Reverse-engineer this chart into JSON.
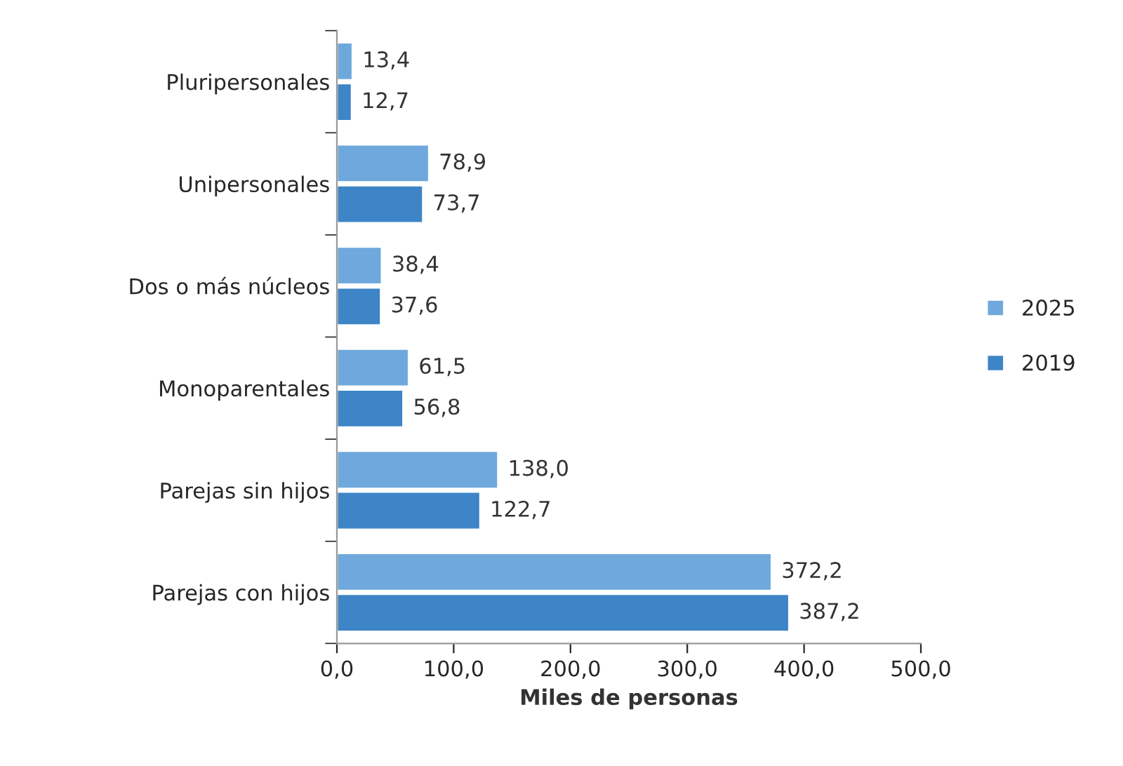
{
  "chart_data": {
    "type": "bar",
    "orientation": "horizontal",
    "xlabel": "Miles de personas",
    "categories": [
      "Pluripersonales",
      "Unipersonales",
      "Dos o más núcleos",
      "Monoparentales",
      "Parejas sin hijos",
      "Parejas con hijos"
    ],
    "series": [
      {
        "name": "2025",
        "color": "#6fa8dc",
        "values": [
          13.4,
          78.9,
          38.4,
          61.5,
          138.0,
          372.2
        ],
        "value_labels": [
          "13,4",
          "78,9",
          "38,4",
          "61,5",
          "138,0",
          "372,2"
        ]
      },
      {
        "name": "2019",
        "color": "#3d85c6",
        "values": [
          12.7,
          73.7,
          37.6,
          56.8,
          122.7,
          387.2
        ],
        "value_labels": [
          "12,7",
          "73,7",
          "37,6",
          "56,8",
          "122,7",
          "387,2"
        ]
      }
    ],
    "xlim": [
      0,
      500
    ],
    "xticks": [
      {
        "value": 0,
        "label": "0,0"
      },
      {
        "value": 100,
        "label": "100,0"
      },
      {
        "value": 200,
        "label": "200,0"
      },
      {
        "value": 300,
        "label": "300,0"
      },
      {
        "value": 400,
        "label": "400,0"
      },
      {
        "value": 500,
        "label": "500,0"
      }
    ],
    "grid": false,
    "legend": "right"
  }
}
